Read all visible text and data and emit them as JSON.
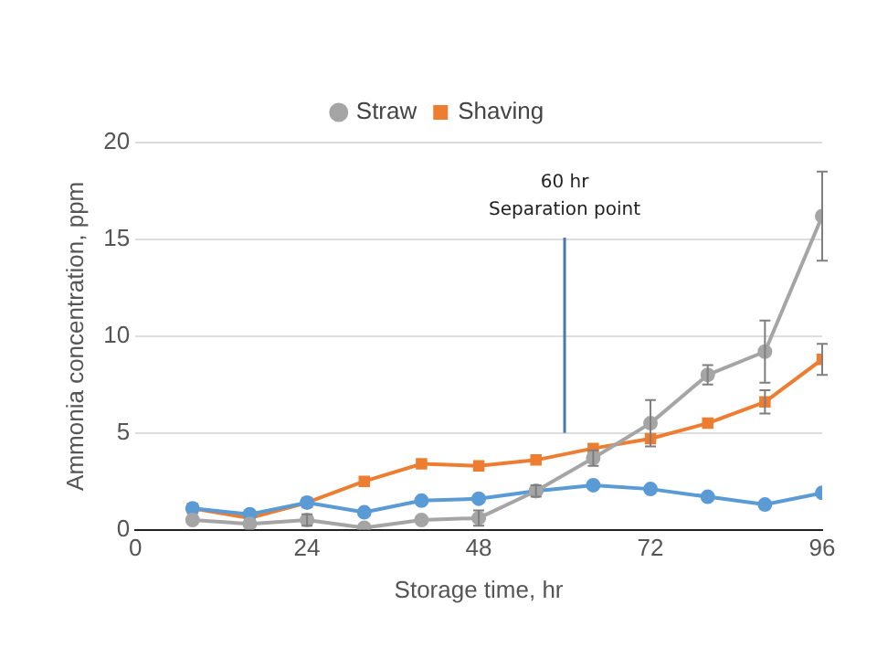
{
  "chart_data": {
    "type": "line",
    "xlabel": "Storage time, hr",
    "ylabel": "Ammonia concentration, ppm",
    "x": [
      8,
      16,
      24,
      32,
      40,
      48,
      56,
      64,
      72,
      80,
      88,
      96
    ],
    "series": [
      {
        "name": "Straw",
        "color": "#a5a5a5",
        "marker": "circle",
        "values": [
          0.5,
          0.3,
          0.5,
          0.1,
          0.5,
          0.6,
          2,
          3.7,
          5.5,
          8,
          9.2,
          16.2
        ],
        "errors": [
          null,
          null,
          0.3,
          null,
          null,
          0.4,
          0.3,
          0.4,
          1.2,
          0.5,
          1.6,
          2.3
        ]
      },
      {
        "color": "#5b9bd5",
        "marker": "circle",
        "values": [
          1.1,
          0.8,
          1.4,
          0.9,
          1.5,
          1.6,
          2,
          2.3,
          2.1,
          1.7,
          1.3,
          1.9
        ]
      },
      {
        "name": "Shaving",
        "color": "#ed7d31",
        "marker": "square",
        "values": [
          1.1,
          0.6,
          1.4,
          2.5,
          3.4,
          3.3,
          3.6,
          4.2,
          4.7,
          5.5,
          6.6,
          8.8
        ],
        "errors": [
          null,
          null,
          null,
          null,
          null,
          null,
          null,
          null,
          null,
          null,
          0.6,
          0.8
        ]
      }
    ],
    "xlim": [
      0,
      96
    ],
    "xticks": [
      0,
      24,
      48,
      72,
      96
    ],
    "ylim": [
      0,
      20
    ],
    "yticks": [
      0,
      5,
      10,
      15,
      20
    ],
    "grid": "y",
    "legend": "top",
    "ref_lines": [
      {
        "axis": "x",
        "value": 60,
        "label": "60 hr\nSeparation point",
        "color": "#4a78b0"
      }
    ]
  }
}
